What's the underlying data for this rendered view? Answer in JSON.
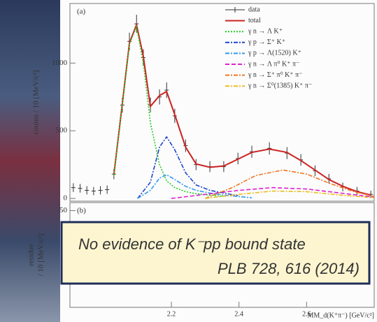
{
  "chart_data": [
    {
      "type": "line",
      "panel_label": "(a)",
      "y_label": "counts / 10 [MeV/c²]",
      "xlim": [
        1.9,
        2.8
      ],
      "ylim": [
        -20,
        1440
      ],
      "yticks": [
        0,
        500,
        1000
      ],
      "series": [
        {
          "name": "data",
          "style": "points",
          "color": "#333333",
          "x": [
            1.91,
            1.93,
            1.95,
            1.97,
            1.99,
            2.01,
            2.03,
            2.055,
            2.076,
            2.097,
            2.117,
            2.138,
            2.165,
            2.186,
            2.21,
            2.242,
            2.273,
            2.314,
            2.355,
            2.397,
            2.438,
            2.49,
            2.542,
            2.583,
            2.625,
            2.666,
            2.707,
            2.749,
            2.79
          ],
          "values": [
            80,
            75,
            60,
            55,
            60,
            65,
            180,
            690,
            1160,
            1290,
            1040,
            690,
            750,
            800,
            610,
            390,
            250,
            235,
            235,
            295,
            345,
            370,
            335,
            285,
            205,
            145,
            85,
            55,
            30
          ]
        },
        {
          "name": "total",
          "style": "solid",
          "color": "#cc2222",
          "x": [
            2.03,
            2.055,
            2.076,
            2.097,
            2.117,
            2.138,
            2.165,
            2.186,
            2.21,
            2.242,
            2.273,
            2.314,
            2.355,
            2.397,
            2.438,
            2.49,
            2.542,
            2.583,
            2.625,
            2.666,
            2.707,
            2.749,
            2.79
          ],
          "values": [
            175,
            700,
            1150,
            1283,
            1050,
            680,
            760,
            790,
            620,
            380,
            255,
            230,
            240,
            290,
            340,
            365,
            340,
            280,
            210,
            140,
            90,
            50,
            25
          ]
        },
        {
          "name": "γ n → Λ  K⁺",
          "style": "dotted",
          "color": "#22cc22",
          "x": [
            2.03,
            2.055,
            2.076,
            2.097,
            2.117,
            2.138,
            2.165,
            2.186,
            2.21,
            2.242,
            2.273,
            2.314,
            2.355
          ],
          "values": [
            170,
            690,
            1140,
            1270,
            1000,
            560,
            250,
            130,
            80,
            50,
            35,
            25,
            15
          ]
        },
        {
          "name": "γ p → Σ⁺ K⁺",
          "style": "dashdot",
          "color": "#2244cc",
          "x": [
            2.1,
            2.138,
            2.165,
            2.186,
            2.21,
            2.242,
            2.273,
            2.314,
            2.355,
            2.397
          ],
          "values": [
            0,
            120,
            380,
            455,
            360,
            190,
            100,
            60,
            40,
            20
          ]
        },
        {
          "name": "γ p → Λ(1520) K⁺",
          "style": "dashdot",
          "color": "#3399ee",
          "x": [
            2.1,
            2.138,
            2.165,
            2.186,
            2.21,
            2.242,
            2.273,
            2.314,
            2.355,
            2.397,
            2.438
          ],
          "values": [
            0,
            60,
            150,
            175,
            140,
            90,
            60,
            40,
            25,
            15,
            5
          ]
        },
        {
          "name": "γ n → Λ π⁰ K⁺ π⁻",
          "style": "dashed",
          "color": "#dd22cc",
          "x": [
            2.2,
            2.3,
            2.4,
            2.5,
            2.6,
            2.7,
            2.8
          ],
          "values": [
            0,
            30,
            60,
            80,
            70,
            40,
            10
          ]
        },
        {
          "name": "γ n → Σ⁺ π⁰ K⁺ π⁻",
          "style": "dashdot",
          "color": "#ee7722",
          "x": [
            2.3,
            2.38,
            2.45,
            2.53,
            2.6,
            2.67,
            2.74,
            2.8
          ],
          "values": [
            0,
            80,
            170,
            210,
            180,
            110,
            50,
            15
          ]
        },
        {
          "name": "γ n → Σ⁰(1385) K⁺ π⁻",
          "style": "dashdot",
          "color": "#eebb22",
          "x": [
            2.3,
            2.4,
            2.5,
            2.6,
            2.7,
            2.8
          ],
          "values": [
            0,
            30,
            55,
            50,
            25,
            5
          ]
        }
      ]
    },
    {
      "type": "residue",
      "panel_label": "(b)",
      "y_label": [
        "residue",
        "/ 10 [MeV/c²]"
      ],
      "x_label": "MM_d(K⁺π⁻) [GeV/c²]",
      "xlim": [
        1.9,
        2.8
      ],
      "ylim": [
        -70,
        60
      ],
      "yticks": [
        50
      ],
      "xticks": [
        2.2,
        2.4,
        2.6
      ]
    }
  ],
  "callout": {
    "lines": [
      "No evidence of K⁻pp bound state",
      "PLB 728, 616 (2014)"
    ]
  }
}
